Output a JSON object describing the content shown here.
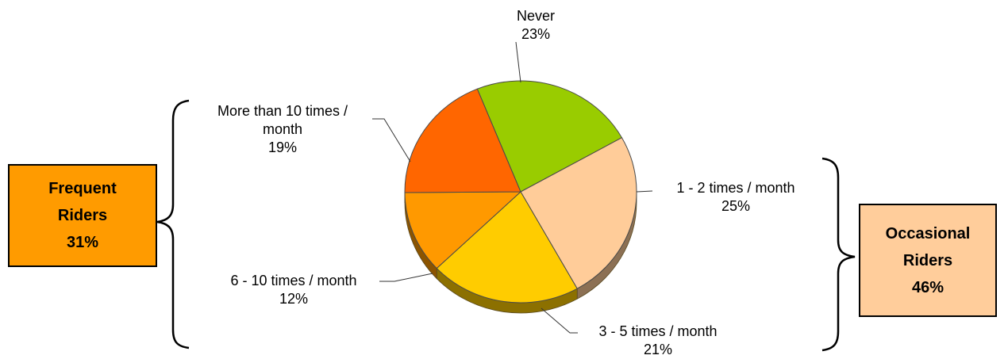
{
  "chart_data": {
    "type": "pie",
    "title": "",
    "slices": [
      {
        "label": "Never",
        "value": 23,
        "value_label": "23%",
        "color": "#99cc00"
      },
      {
        "label": "1 - 2 times / month",
        "value": 25,
        "value_label": "25%",
        "color": "#ffcc99"
      },
      {
        "label": "3 - 5 times / month",
        "value": 21,
        "value_label": "21%",
        "color": "#ffcc00"
      },
      {
        "label": "6 - 10 times / month",
        "value": 12,
        "value_label": "12%",
        "color": "#ff9900"
      },
      {
        "label": "More than 10 times / month",
        "label_lines": [
          "More than 10 times /",
          "month"
        ],
        "value": 19,
        "value_label": "19%",
        "color": "#ff6600"
      }
    ],
    "groups": [
      {
        "name": "frequent",
        "line1": "Frequent",
        "line2": "Riders",
        "value_label": "31%",
        "color": "#ff9b00"
      },
      {
        "name": "occasional",
        "line1": "Occasional",
        "line2": "Riders",
        "value_label": "46%",
        "color": "#ffcd9b"
      }
    ]
  }
}
